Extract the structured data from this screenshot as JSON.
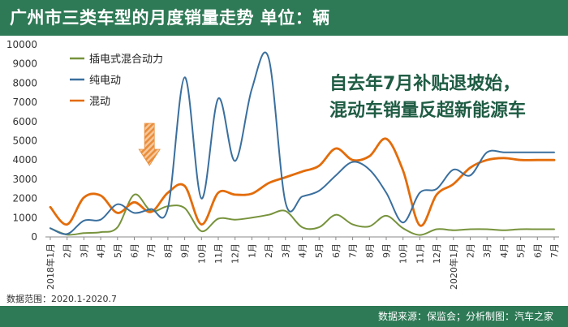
{
  "header": {
    "title": "广州市三类车型的月度销量走势  单位：辆"
  },
  "footer": {
    "data_range": "数据范围：2020.1-2020.7",
    "source": "数据来源：保监会；分析制图：汽车之家"
  },
  "chart_data": {
    "type": "line",
    "title": "广州市三类车型的月度销量走势",
    "unit": "辆",
    "xlabel": "",
    "ylabel": "",
    "ylim": [
      0,
      10000
    ],
    "yticks": [
      "0",
      "1000",
      "2000",
      "3000",
      "4000",
      "5000",
      "6000",
      "7000",
      "8000",
      "9000",
      "10000"
    ],
    "categories": [
      "2018年1月",
      "2月",
      "3月",
      "4月",
      "5月",
      "6月",
      "7月",
      "8月",
      "9月",
      "10月",
      "11月",
      "12月",
      "2019年1月",
      "2月",
      "3月",
      "4月",
      "5月",
      "6月",
      "7月",
      "8月",
      "9月",
      "10月",
      "11月",
      "12月",
      "2020年1月",
      "2月",
      "3月",
      "4月",
      "5月",
      "6月",
      "7月"
    ],
    "x_tick_labels": [
      "2018年1月",
      "2月",
      "3月",
      "4月",
      "5月",
      "6月",
      "7月",
      "8月",
      "9月",
      "10月",
      "11月",
      "12月",
      "1月",
      "2月",
      "3月",
      "4月",
      "5月",
      "6月",
      "7月",
      "8月",
      "9月",
      "10月",
      "11月",
      "12月",
      "2020年1月",
      "2月",
      "3月",
      "4月",
      "5月",
      "6月",
      "7月"
    ],
    "series": [
      {
        "name": "插电式混合动力",
        "color": "#77933c",
        "values": [
          450,
          120,
          200,
          250,
          500,
          2200,
          1350,
          1600,
          1500,
          300,
          950,
          900,
          1000,
          1150,
          1350,
          500,
          500,
          1150,
          650,
          550,
          1100,
          450,
          100,
          400,
          350,
          400,
          400,
          350,
          400,
          400,
          400
        ]
      },
      {
        "name": "纯电动",
        "color": "#3a6f9e",
        "values": [
          450,
          150,
          850,
          900,
          1700,
          1250,
          1450,
          1500,
          8300,
          2000,
          7200,
          3950,
          7700,
          9300,
          1800,
          2100,
          2400,
          3200,
          3900,
          3500,
          2300,
          750,
          2300,
          2500,
          3500,
          3200,
          4400,
          4400,
          4400,
          4400,
          4400
        ]
      },
      {
        "name": "混动",
        "color": "#e36c0a",
        "values": [
          1550,
          650,
          2050,
          2150,
          1250,
          1800,
          1300,
          2300,
          2650,
          650,
          2300,
          2200,
          2250,
          2800,
          3100,
          3400,
          3700,
          4600,
          4000,
          4200,
          5100,
          3450,
          600,
          2200,
          2750,
          3600,
          4000,
          4100,
          4000,
          4000,
          4000
        ]
      }
    ],
    "annotation": "自去年7月补贴退坡始，混动车销量反超新能源车",
    "annotation_lines": [
      "自去年7月补贴退坡始，",
      "混动车销量反超新能源车"
    ],
    "annotation_arrow_at": "7月"
  }
}
